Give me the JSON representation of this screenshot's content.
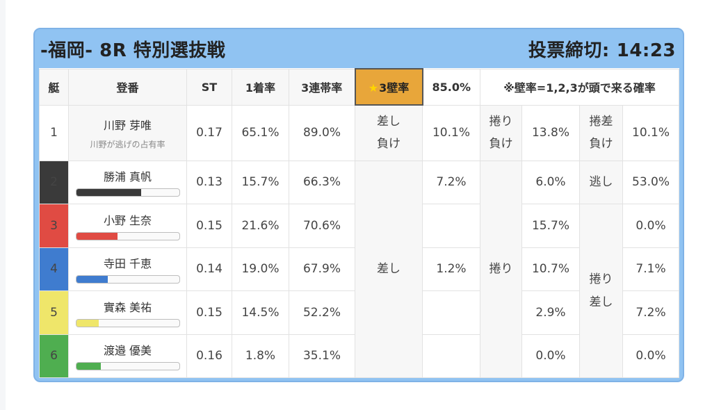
{
  "header": {
    "race_title": "-福岡- 8R 特別選抜戦",
    "deadline_label": "投票締切:",
    "deadline_time": "14:23"
  },
  "columns": {
    "boat": "艇",
    "name": "登番",
    "st": "ST",
    "first_rate": "1着率",
    "top3_rate": "3連帯率",
    "kabe_label": "3壁率",
    "kabe_value": "85.0%",
    "note": "※壁率=1,2,3が頭で来る確率"
  },
  "kimarite": {
    "sashi_make": [
      "差し",
      "負け"
    ],
    "makuri_make": [
      "捲り",
      "負け"
    ],
    "makurisashi_make": [
      "捲差",
      "負け"
    ],
    "nige": "逃し",
    "sashi": "差し",
    "makuri": "捲り",
    "makurisashi": [
      "捲り",
      "差し"
    ]
  },
  "colors": {
    "boat_1": "#ffffff",
    "boat_2": "#3a3a3a",
    "boat_3": "#e04b43",
    "boat_4": "#3f7ccf",
    "boat_5": "#efe66a",
    "boat_6": "#4fae50",
    "kabe_highlight": "#e8a63a",
    "header_bg": "#90c3f2"
  },
  "rows": [
    {
      "boat": "1",
      "name": "川野 芽唯",
      "sub": "川野が逃げの占有率",
      "st": "0.17",
      "first_rate": "65.1%",
      "top3_rate": "89.0%",
      "sashi_lose": "10.1%",
      "makuri_lose": "13.8%",
      "makurisashi_lose": "10.1%"
    },
    {
      "boat": "2",
      "name": "勝浦 真帆",
      "bar_fraction": 0.63,
      "st": "0.13",
      "first_rate": "15.7%",
      "top3_rate": "66.3%",
      "sashi": "7.2%",
      "makuri": "6.0%",
      "nige": "53.0%"
    },
    {
      "boat": "3",
      "name": "小野 生奈",
      "bar_fraction": 0.4,
      "st": "0.15",
      "first_rate": "21.6%",
      "top3_rate": "70.6%",
      "sashi": "",
      "makuri": "15.7%",
      "makurisashi": "0.0%"
    },
    {
      "boat": "4",
      "name": "寺田 千恵",
      "bar_fraction": 0.31,
      "st": "0.14",
      "first_rate": "19.0%",
      "top3_rate": "67.9%",
      "sashi": "1.2%",
      "makuri": "10.7%",
      "makurisashi": "7.1%"
    },
    {
      "boat": "5",
      "name": "實森 美祐",
      "bar_fraction": 0.22,
      "st": "0.15",
      "first_rate": "14.5%",
      "top3_rate": "52.2%",
      "sashi": "",
      "makuri": "2.9%",
      "makurisashi": "7.2%"
    },
    {
      "boat": "6",
      "name": "渡邉 優美",
      "bar_fraction": 0.24,
      "st": "0.16",
      "first_rate": "1.8%",
      "top3_rate": "35.1%",
      "sashi": "",
      "makuri": "0.0%",
      "makurisashi": "0.0%"
    }
  ]
}
